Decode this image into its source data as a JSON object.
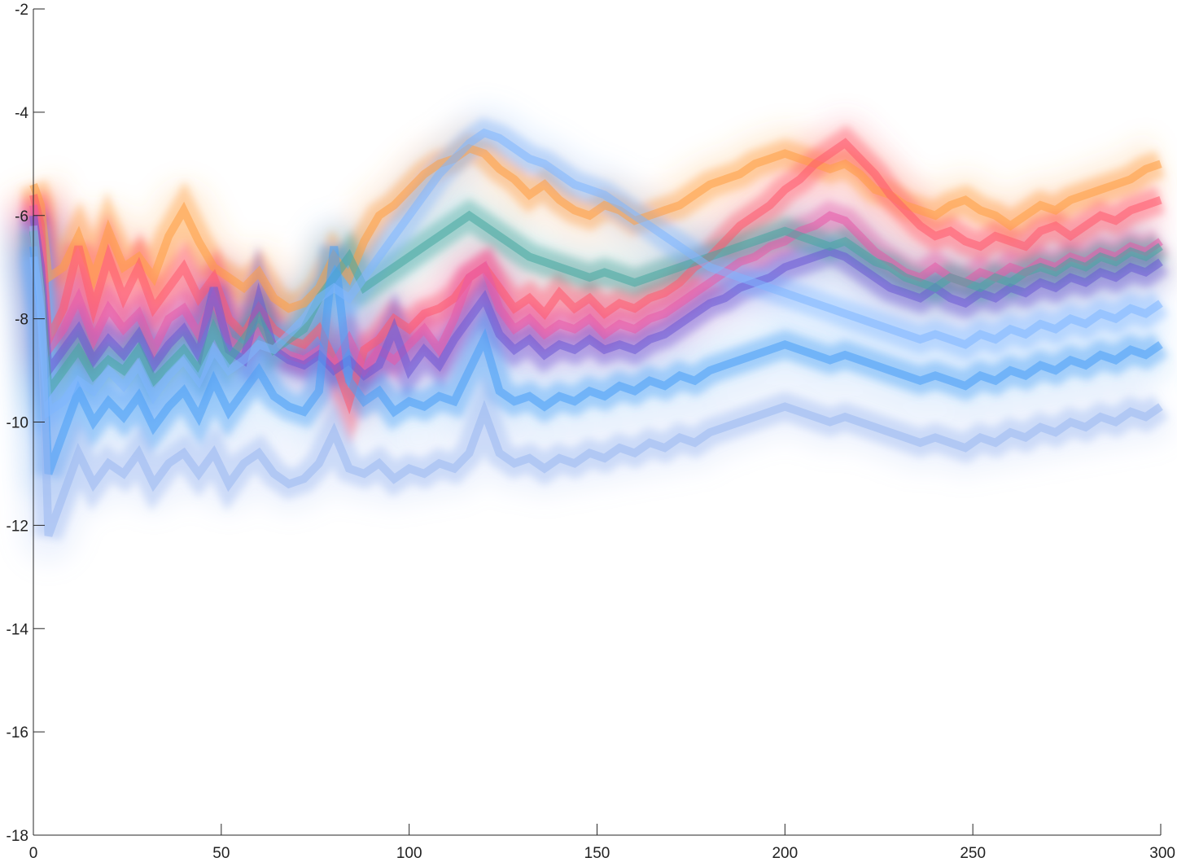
{
  "chart_data": {
    "type": "line",
    "title": "",
    "xlabel": "",
    "ylabel": "",
    "xlim": [
      0,
      300
    ],
    "ylim": [
      -18,
      -2
    ],
    "grid": false,
    "legend": "none",
    "x_ticks": [
      0,
      50,
      100,
      150,
      200,
      250,
      300
    ],
    "x_tick_labels": [
      "0",
      "50",
      "100",
      "150",
      "200",
      "250",
      "300"
    ],
    "y_ticks": [
      -2,
      -4,
      -6,
      -8,
      -10,
      -12,
      -14,
      -16,
      -18
    ],
    "y_tick_labels": [
      "-2",
      "-4",
      "-6",
      "-8",
      "-10",
      "-12",
      "-14",
      "-16",
      "-18"
    ],
    "x": [
      0,
      2,
      4,
      8,
      12,
      16,
      20,
      24,
      28,
      32,
      36,
      40,
      44,
      48,
      52,
      56,
      60,
      64,
      68,
      72,
      76,
      80,
      84,
      88,
      92,
      96,
      100,
      104,
      108,
      112,
      116,
      120,
      124,
      128,
      132,
      136,
      140,
      144,
      148,
      152,
      156,
      160,
      164,
      168,
      172,
      176,
      180,
      184,
      188,
      192,
      196,
      200,
      204,
      208,
      212,
      216,
      220,
      224,
      228,
      232,
      236,
      240,
      244,
      248,
      252,
      256,
      260,
      264,
      268,
      272,
      276,
      280,
      284,
      288,
      292,
      296,
      300
    ],
    "series": [
      {
        "color": "#ff9f43",
        "values": [
          -5.4,
          -5.8,
          -7.2,
          -7.0,
          -6.4,
          -7.2,
          -6.3,
          -7.0,
          -6.8,
          -7.2,
          -6.4,
          -5.9,
          -6.5,
          -7.0,
          -7.2,
          -7.4,
          -7.1,
          -7.6,
          -7.8,
          -7.7,
          -7.4,
          -6.8,
          -7.2,
          -6.5,
          -6.0,
          -5.8,
          -5.5,
          -5.2,
          -5.0,
          -4.9,
          -4.7,
          -4.8,
          -5.1,
          -5.3,
          -5.6,
          -5.4,
          -5.7,
          -5.9,
          -6.0,
          -5.8,
          -5.9,
          -6.1,
          -6.0,
          -5.9,
          -5.8,
          -5.6,
          -5.4,
          -5.3,
          -5.2,
          -5.0,
          -4.9,
          -4.8,
          -4.9,
          -5.0,
          -5.1,
          -5.0,
          -5.2,
          -5.5,
          -5.6,
          -5.8,
          -5.9,
          -6.0,
          -5.8,
          -5.7,
          -5.9,
          -6.0,
          -6.2,
          -6.0,
          -5.8,
          -5.9,
          -5.7,
          -5.6,
          -5.5,
          -5.4,
          -5.3,
          -5.1,
          -5.0
        ]
      },
      {
        "color": "#ff5a6e",
        "values": [
          -5.6,
          -6.2,
          -8.4,
          -7.8,
          -6.6,
          -7.8,
          -6.8,
          -7.6,
          -7.0,
          -7.8,
          -7.4,
          -7.0,
          -7.6,
          -7.2,
          -8.0,
          -8.3,
          -7.8,
          -8.2,
          -8.4,
          -8.5,
          -8.2,
          -8.8,
          -9.6,
          -8.6,
          -8.4,
          -8.0,
          -8.2,
          -7.9,
          -7.8,
          -7.6,
          -7.2,
          -7.0,
          -7.4,
          -7.8,
          -7.6,
          -7.9,
          -7.5,
          -7.8,
          -7.6,
          -7.9,
          -7.7,
          -7.8,
          -7.6,
          -7.5,
          -7.3,
          -7.0,
          -6.8,
          -6.5,
          -6.2,
          -6.0,
          -5.8,
          -5.5,
          -5.3,
          -5.0,
          -4.8,
          -4.6,
          -4.9,
          -5.2,
          -5.6,
          -5.9,
          -6.2,
          -6.4,
          -6.3,
          -6.5,
          -6.6,
          -6.4,
          -6.5,
          -6.6,
          -6.3,
          -6.2,
          -6.4,
          -6.2,
          -6.0,
          -6.1,
          -5.9,
          -5.8,
          -5.7
        ]
      },
      {
        "color": "#e85aa8",
        "values": [
          -5.8,
          -6.5,
          -8.6,
          -8.2,
          -7.6,
          -8.4,
          -7.8,
          -8.2,
          -7.9,
          -8.6,
          -8.0,
          -7.8,
          -8.3,
          -7.6,
          -8.4,
          -8.6,
          -8.2,
          -8.5,
          -8.7,
          -8.8,
          -8.6,
          -8.9,
          -8.4,
          -9.0,
          -8.6,
          -8.8,
          -8.5,
          -8.2,
          -8.6,
          -8.0,
          -7.2,
          -7.0,
          -7.8,
          -8.2,
          -8.0,
          -8.3,
          -8.1,
          -8.2,
          -8.0,
          -8.3,
          -8.1,
          -8.2,
          -8.0,
          -7.9,
          -7.7,
          -7.5,
          -7.3,
          -7.1,
          -6.9,
          -6.8,
          -6.6,
          -6.5,
          -6.3,
          -6.2,
          -6.0,
          -6.1,
          -6.4,
          -6.7,
          -6.9,
          -7.1,
          -7.2,
          -7.0,
          -7.2,
          -7.3,
          -7.1,
          -7.2,
          -7.0,
          -7.1,
          -6.9,
          -7.0,
          -6.8,
          -6.9,
          -6.7,
          -6.8,
          -6.6,
          -6.7,
          -6.5
        ]
      },
      {
        "color": "#6b5ad6",
        "values": [
          -6.0,
          -7.0,
          -9.0,
          -8.6,
          -8.2,
          -8.8,
          -8.4,
          -8.7,
          -8.3,
          -8.9,
          -8.5,
          -8.2,
          -8.7,
          -7.4,
          -8.6,
          -8.8,
          -7.6,
          -8.6,
          -8.8,
          -8.9,
          -8.7,
          -9.0,
          -8.8,
          -9.1,
          -8.9,
          -8.2,
          -9.0,
          -8.6,
          -8.9,
          -8.4,
          -8.0,
          -7.6,
          -8.3,
          -8.6,
          -8.4,
          -8.7,
          -8.5,
          -8.6,
          -8.4,
          -8.6,
          -8.5,
          -8.6,
          -8.4,
          -8.3,
          -8.1,
          -7.9,
          -7.7,
          -7.6,
          -7.4,
          -7.3,
          -7.2,
          -7.0,
          -6.9,
          -6.8,
          -6.7,
          -6.8,
          -7.0,
          -7.2,
          -7.4,
          -7.5,
          -7.6,
          -7.4,
          -7.6,
          -7.7,
          -7.5,
          -7.6,
          -7.4,
          -7.5,
          -7.3,
          -7.4,
          -7.2,
          -7.3,
          -7.1,
          -7.2,
          -7.0,
          -7.1,
          -6.9
        ]
      },
      {
        "color": "#46a8a0",
        "values": [
          -6.3,
          -7.4,
          -9.4,
          -9.0,
          -8.6,
          -9.1,
          -8.8,
          -9.0,
          -8.6,
          -9.2,
          -8.9,
          -8.6,
          -9.0,
          -8.2,
          -8.8,
          -8.4,
          -8.0,
          -8.6,
          -8.4,
          -8.2,
          -7.6,
          -7.2,
          -6.8,
          -7.4,
          -7.2,
          -7.0,
          -6.8,
          -6.6,
          -6.4,
          -6.2,
          -6.0,
          -6.2,
          -6.4,
          -6.6,
          -6.8,
          -6.9,
          -7.0,
          -7.1,
          -7.2,
          -7.1,
          -7.2,
          -7.3,
          -7.2,
          -7.1,
          -7.0,
          -6.9,
          -6.8,
          -6.7,
          -6.6,
          -6.5,
          -6.4,
          -6.3,
          -6.4,
          -6.5,
          -6.6,
          -6.5,
          -6.7,
          -6.9,
          -7.0,
          -7.2,
          -7.3,
          -7.4,
          -7.2,
          -7.3,
          -7.4,
          -7.2,
          -7.3,
          -7.1,
          -7.0,
          -7.1,
          -6.9,
          -7.0,
          -6.8,
          -6.9,
          -6.7,
          -6.8,
          -6.6
        ]
      },
      {
        "color": "#4a9ff5",
        "values": [
          -6.6,
          -7.8,
          -11.0,
          -10.2,
          -9.4,
          -10.0,
          -9.6,
          -9.9,
          -9.5,
          -10.1,
          -9.7,
          -9.4,
          -9.9,
          -9.2,
          -9.8,
          -9.4,
          -9.0,
          -9.5,
          -9.7,
          -9.8,
          -9.4,
          -6.6,
          -9.2,
          -9.6,
          -9.4,
          -9.8,
          -9.6,
          -9.7,
          -9.5,
          -9.6,
          -9.0,
          -8.4,
          -9.4,
          -9.6,
          -9.5,
          -9.7,
          -9.5,
          -9.6,
          -9.4,
          -9.5,
          -9.3,
          -9.4,
          -9.2,
          -9.3,
          -9.1,
          -9.2,
          -9.0,
          -8.9,
          -8.8,
          -8.7,
          -8.6,
          -8.5,
          -8.6,
          -8.7,
          -8.8,
          -8.7,
          -8.8,
          -8.9,
          -9.0,
          -9.1,
          -9.2,
          -9.1,
          -9.2,
          -9.3,
          -9.1,
          -9.2,
          -9.0,
          -9.1,
          -8.9,
          -9.0,
          -8.8,
          -8.9,
          -8.7,
          -8.8,
          -8.6,
          -8.7,
          -8.5
        ]
      },
      {
        "color": "#9bb8f0",
        "values": [
          -6.2,
          -7.6,
          -12.2,
          -11.4,
          -10.6,
          -11.2,
          -10.8,
          -11.0,
          -10.6,
          -11.2,
          -10.8,
          -10.6,
          -11.0,
          -10.6,
          -11.2,
          -10.8,
          -10.6,
          -11.0,
          -11.2,
          -11.1,
          -10.8,
          -10.2,
          -10.9,
          -11.0,
          -10.8,
          -11.1,
          -10.9,
          -11.0,
          -10.8,
          -10.9,
          -10.6,
          -9.8,
          -10.6,
          -10.8,
          -10.7,
          -10.9,
          -10.7,
          -10.8,
          -10.6,
          -10.7,
          -10.5,
          -10.6,
          -10.4,
          -10.5,
          -10.3,
          -10.4,
          -10.2,
          -10.1,
          -10.0,
          -9.9,
          -9.8,
          -9.7,
          -9.8,
          -9.9,
          -10.0,
          -9.9,
          -10.0,
          -10.1,
          -10.2,
          -10.3,
          -10.4,
          -10.3,
          -10.4,
          -10.5,
          -10.3,
          -10.4,
          -10.2,
          -10.3,
          -10.1,
          -10.2,
          -10.0,
          -10.1,
          -9.9,
          -10.0,
          -9.8,
          -9.9,
          -9.7
        ]
      },
      {
        "color": "#7fb6ff",
        "values": [
          -6.8,
          -7.9,
          -9.8,
          -9.6,
          -9.2,
          -9.4,
          -9.0,
          -9.3,
          -8.9,
          -9.5,
          -9.1,
          -8.8,
          -9.2,
          -8.6,
          -9.0,
          -8.8,
          -8.5,
          -8.6,
          -8.3,
          -8.0,
          -7.6,
          -7.4,
          -7.6,
          -7.2,
          -6.8,
          -6.4,
          -6.0,
          -5.6,
          -5.2,
          -4.9,
          -4.6,
          -4.4,
          -4.5,
          -4.7,
          -4.9,
          -5.0,
          -5.2,
          -5.4,
          -5.5,
          -5.6,
          -5.8,
          -6.0,
          -6.2,
          -6.4,
          -6.6,
          -6.8,
          -7.0,
          -7.1,
          -7.2,
          -7.3,
          -7.4,
          -7.5,
          -7.6,
          -7.7,
          -7.8,
          -7.9,
          -8.0,
          -8.1,
          -8.2,
          -8.3,
          -8.4,
          -8.3,
          -8.4,
          -8.5,
          -8.3,
          -8.4,
          -8.2,
          -8.3,
          -8.1,
          -8.2,
          -8.0,
          -8.1,
          -7.9,
          -8.0,
          -7.8,
          -7.9,
          -7.7
        ]
      }
    ]
  }
}
